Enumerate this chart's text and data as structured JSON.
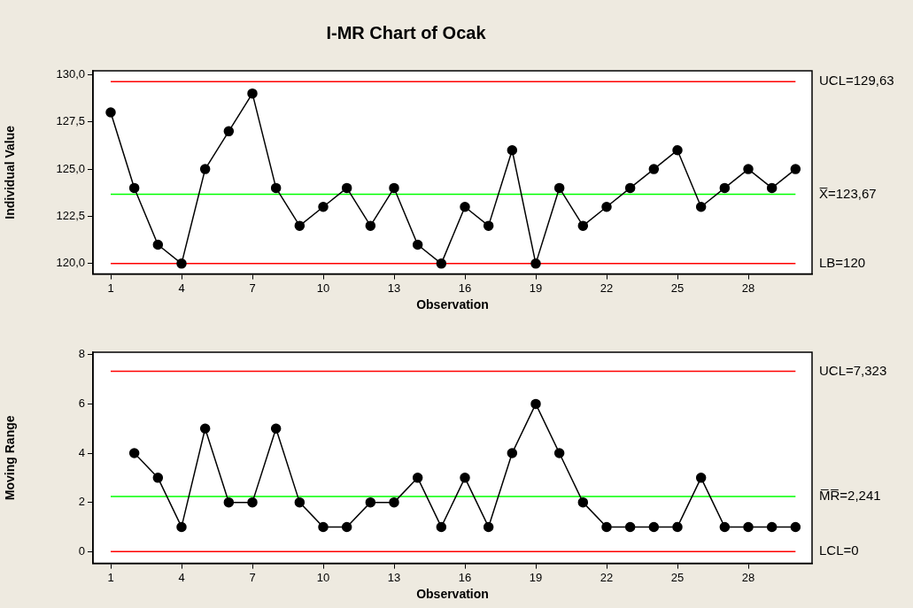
{
  "chart_data": [
    {
      "type": "line",
      "title": "I-MR Chart of Ocak",
      "xlabel": "Observation",
      "ylabel": "Individual Value",
      "x": [
        1,
        2,
        3,
        4,
        5,
        6,
        7,
        8,
        9,
        10,
        11,
        12,
        13,
        14,
        15,
        16,
        17,
        18,
        19,
        20,
        21,
        22,
        23,
        24,
        25,
        26,
        27,
        28,
        29,
        30
      ],
      "series": [
        {
          "color": "#000000",
          "values": [
            128,
            124,
            121,
            120,
            125,
            127,
            129,
            124,
            122,
            123,
            124,
            122,
            124,
            121,
            120,
            123,
            122,
            126,
            120,
            124,
            122,
            123,
            124,
            125,
            126,
            123,
            124,
            125,
            124,
            125
          ]
        }
      ],
      "xlim": [
        0.25,
        30.7
      ],
      "xticks": [
        1,
        4,
        7,
        10,
        13,
        16,
        19,
        22,
        25,
        28
      ],
      "ylim": [
        119.45,
        130.2
      ],
      "yticks": [
        {
          "value": 120,
          "label": "120,0"
        },
        {
          "value": 122.5,
          "label": "122,5"
        },
        {
          "value": 125,
          "label": "125,0"
        },
        {
          "value": 127.5,
          "label": "127,5"
        },
        {
          "value": 130,
          "label": "130,0"
        }
      ],
      "ref_lines": [
        {
          "axis": "y",
          "value": 129.63,
          "label": "UCL=129,63",
          "color": "#ff0000"
        },
        {
          "axis": "y",
          "value": 123.67,
          "label": "X̅=123,67",
          "color": "#00ff00"
        },
        {
          "axis": "y",
          "value": 120,
          "label": "LB=120",
          "color": "#ff0000"
        }
      ],
      "marker": "circle",
      "legend": false,
      "grid": false
    },
    {
      "type": "line",
      "xlabel": "Observation",
      "ylabel": "Moving Range",
      "series": [
        {
          "color": "#000000",
          "x": [
            2,
            3,
            4,
            5,
            6,
            7,
            8,
            9,
            10,
            11,
            12,
            13,
            14,
            15,
            16,
            17,
            18,
            19,
            20,
            21,
            22,
            23,
            24,
            25,
            26,
            27,
            28,
            29,
            30
          ],
          "values": [
            4,
            3,
            1,
            5,
            2,
            2,
            5,
            2,
            1,
            1,
            2,
            2,
            3,
            1,
            3,
            1,
            4,
            6,
            4,
            2,
            1,
            1,
            1,
            1,
            3,
            1,
            1,
            1,
            1
          ]
        }
      ],
      "xlim": [
        0.25,
        30.7
      ],
      "xticks": [
        1,
        4,
        7,
        10,
        13,
        16,
        19,
        22,
        25,
        28
      ],
      "ylim": [
        -0.48,
        8.1
      ],
      "yticks": [
        0,
        2,
        4,
        6,
        8
      ],
      "ref_lines": [
        {
          "axis": "y",
          "value": 7.323,
          "label": "UCL=7,323",
          "color": "#ff0000"
        },
        {
          "axis": "y",
          "value": 2.241,
          "label": "M̅R̅=2,241",
          "color": "#00ff00"
        },
        {
          "axis": "y",
          "value": 0,
          "label": "LCL=0",
          "color": "#ff0000"
        }
      ],
      "marker": "circle",
      "legend": false,
      "grid": false
    }
  ]
}
